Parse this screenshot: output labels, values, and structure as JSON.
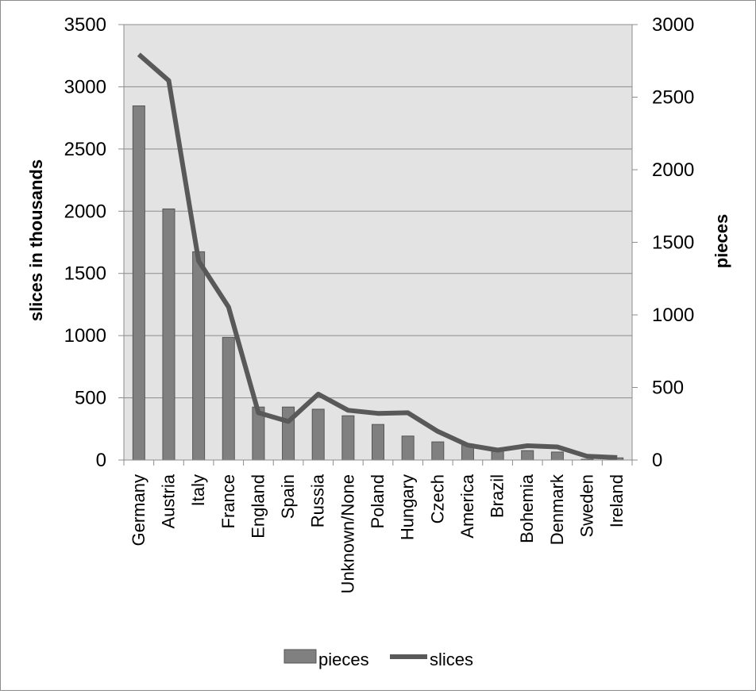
{
  "chart_data": {
    "type": "bar",
    "categories": [
      "Germany",
      "Austria",
      "Italy",
      "France",
      "England",
      "Spain",
      "Russia",
      "Unknown/None",
      "Poland",
      "Hungary",
      "Czech",
      "America",
      "Brazil",
      "Bohemia",
      "Denmark",
      "Sweden",
      "Ireland"
    ],
    "series": [
      {
        "name": "pieces",
        "type": "bar",
        "axis": "right",
        "color": "#808080",
        "values": [
          2440,
          1730,
          1435,
          845,
          365,
          365,
          350,
          305,
          245,
          165,
          125,
          110,
          75,
          65,
          55,
          5,
          15
        ]
      },
      {
        "name": "slices",
        "type": "line",
        "axis": "left",
        "color": "#595959",
        "values": [
          3260,
          3050,
          1600,
          1230,
          380,
          310,
          530,
          400,
          375,
          380,
          230,
          120,
          80,
          115,
          105,
          30,
          20
        ]
      }
    ],
    "ylabel": "slices in thousands",
    "y2label": "pieces",
    "ylim": [
      0,
      3500
    ],
    "y2lim": [
      0,
      3000
    ],
    "yticks": [
      "0",
      "500",
      "1000",
      "1500",
      "2000",
      "2500",
      "3000",
      "3500"
    ],
    "y2ticks": [
      "0",
      "500",
      "1000",
      "1500",
      "2000",
      "2500",
      "3000"
    ],
    "grid": true,
    "legend": "bottom"
  }
}
